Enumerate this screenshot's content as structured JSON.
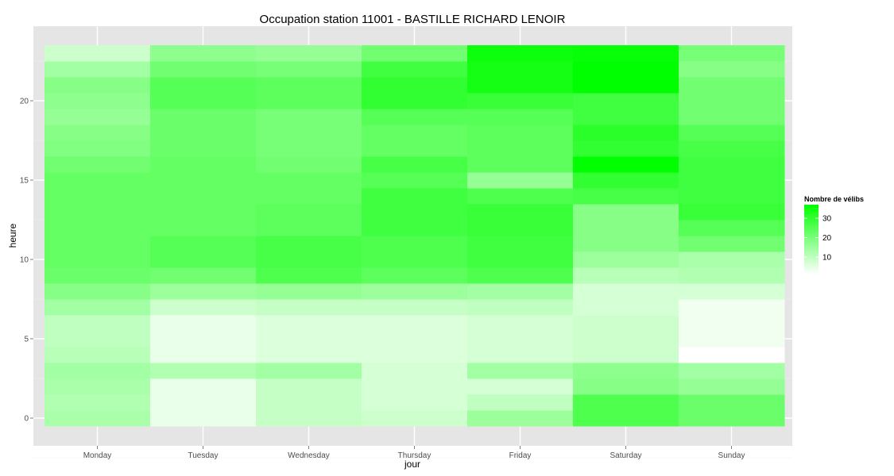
{
  "chart_data": {
    "type": "heatmap",
    "title": "Occupation station 11001 - BASTILLE RICHARD LENOIR",
    "xlabel": "jour",
    "ylabel": "heure",
    "x_categories": [
      "Monday",
      "Tuesday",
      "Wednesday",
      "Thursday",
      "Friday",
      "Saturday",
      "Sunday"
    ],
    "y_range": [
      -0.5,
      23.5
    ],
    "y_ticks": [
      0,
      5,
      10,
      15,
      20
    ],
    "hours": [
      0,
      1,
      2,
      3,
      4,
      5,
      6,
      7,
      8,
      9,
      10,
      11,
      12,
      13,
      14,
      15,
      16,
      17,
      18,
      19,
      20,
      21,
      22,
      23
    ],
    "values": [
      [
        13,
        12,
        13,
        14,
        11,
        10,
        10,
        14,
        18,
        22,
        23,
        23,
        23,
        23,
        23,
        23,
        21,
        19,
        18,
        16,
        17,
        18,
        14,
        8
      ],
      [
        4,
        4,
        4,
        12,
        4,
        4,
        4,
        8,
        15,
        21,
        25,
        25,
        23,
        23,
        23,
        23,
        23,
        22,
        22,
        22,
        25,
        25,
        21,
        17
      ],
      [
        9,
        9,
        9,
        14,
        6,
        6,
        6,
        9,
        16,
        26,
        27,
        27,
        24,
        24,
        23,
        23,
        21,
        20,
        20,
        20,
        24,
        24,
        20,
        16
      ],
      [
        8,
        7,
        7,
        7,
        6,
        6,
        6,
        9,
        15,
        24,
        26,
        26,
        28,
        28,
        28,
        25,
        27,
        23,
        23,
        25,
        30,
        30,
        28,
        21
      ],
      [
        15,
        10,
        7,
        14,
        7,
        7,
        7,
        10,
        14,
        26,
        28,
        28,
        29,
        29,
        26,
        16,
        24,
        24,
        24,
        25,
        29,
        34,
        34,
        35
      ],
      [
        26,
        26,
        18,
        17,
        8,
        8,
        8,
        7,
        7,
        11,
        15,
        18,
        18,
        18,
        27,
        30,
        37,
        30,
        31,
        28,
        28,
        37,
        37,
        36
      ],
      [
        22,
        22,
        16,
        14,
        1,
        3,
        3,
        3,
        7,
        12,
        13,
        21,
        25,
        29,
        28,
        28,
        28,
        27,
        25,
        21,
        21,
        21,
        18,
        20
      ]
    ],
    "legend": {
      "title": "Nombre de vélibs",
      "ticks": [
        10,
        20,
        30
      ],
      "min": 1,
      "max": 37,
      "low_color": "#ffffff",
      "high_color": "#00ff00",
      "placement": "right"
    },
    "panel_background": "#e5e5e5",
    "grid_color": "#ffffff",
    "grid": true
  }
}
